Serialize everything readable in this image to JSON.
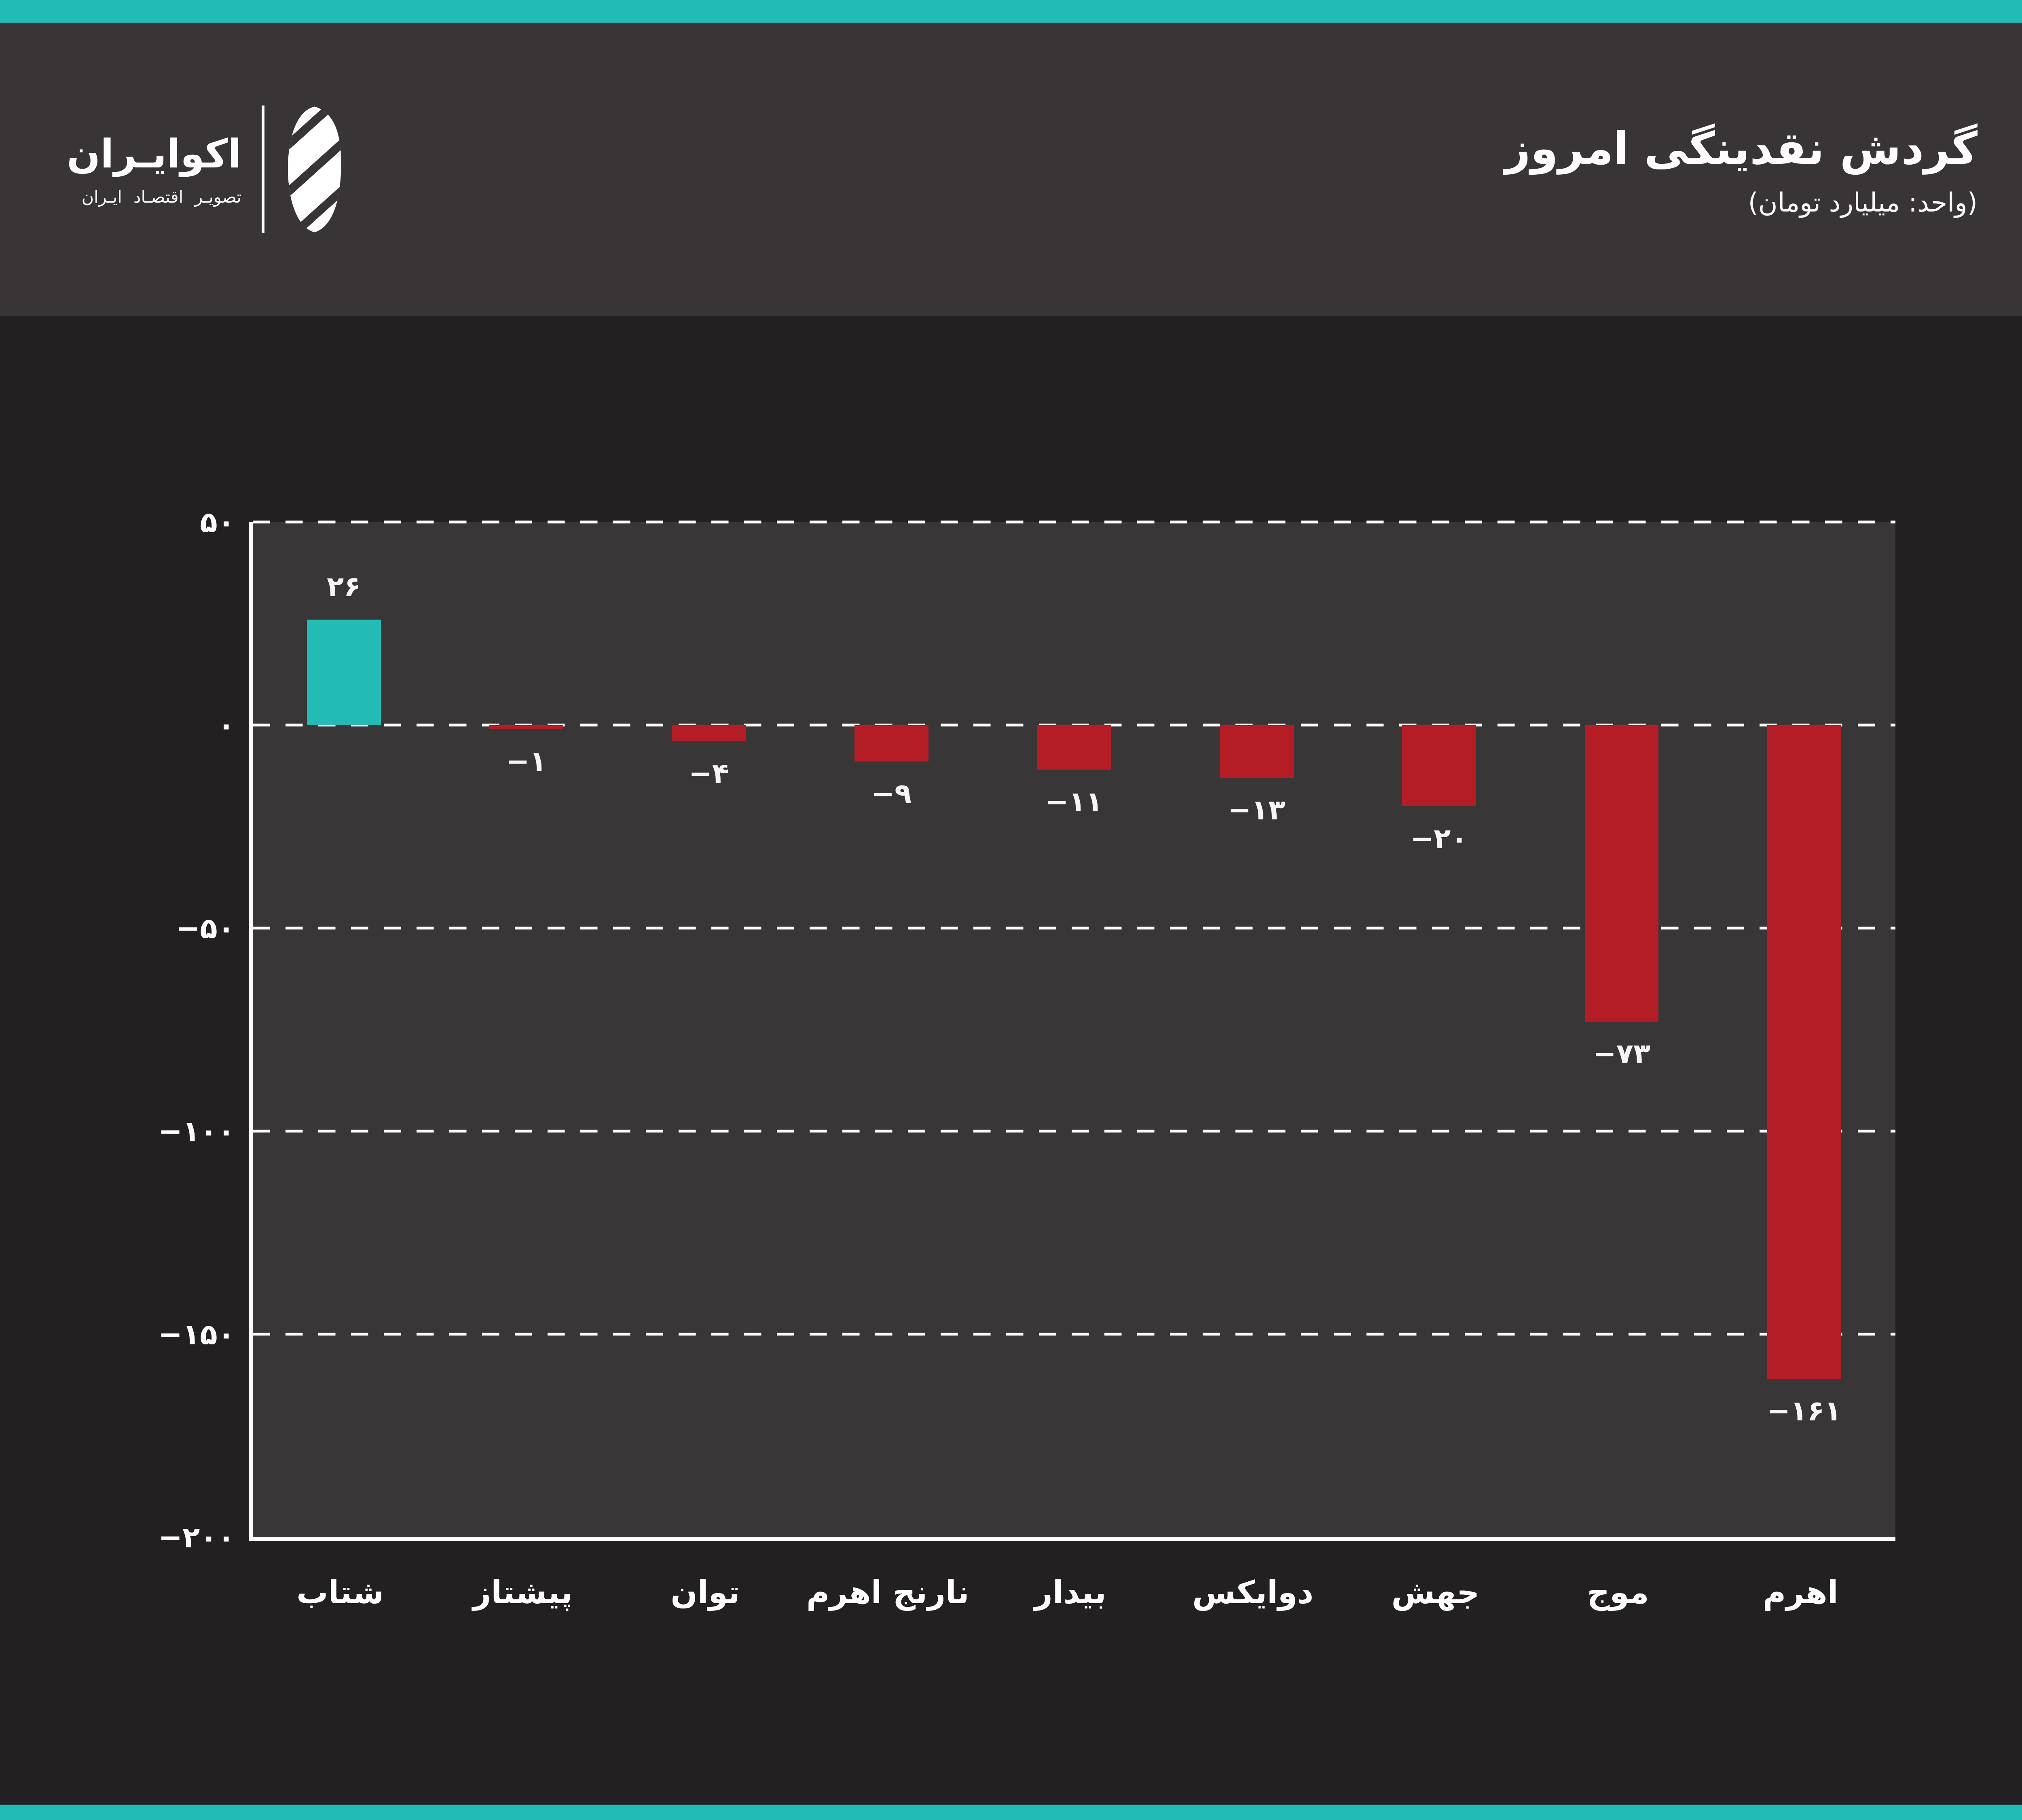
{
  "page": {
    "background": "#232021",
    "accent_teal": "#23BCB4",
    "header_background": "#393536",
    "text_color": "#FFFFFF"
  },
  "header": {
    "title": "گردش نقدینگی امروز",
    "subtitle": "(واحد: میلیارد تومان)"
  },
  "logo": {
    "wordmark": "اکوایـران",
    "tagline": "تصویـر اقتصـاد ایـران",
    "mark": "eco-iran-logo"
  },
  "chart_data": {
    "type": "bar",
    "title": "گردش نقدینگی امروز",
    "unit_label": "(واحد: میلیارد تومان)",
    "categories": [
      "شتاب",
      "پیشتاز",
      "توان",
      "نارنج اهرم",
      "بیدار",
      "دوایکس",
      "جهش",
      "موج",
      "اهرم"
    ],
    "values": [
      26,
      -1,
      -4,
      -9,
      -11,
      -13,
      -20,
      -73,
      -161
    ],
    "display_values": [
      "۲۶",
      "−۱",
      "−۴",
      "−۹",
      "−۱۱",
      "−۱۳",
      "−۲۰",
      "−۷۳",
      "−۱۶۱"
    ],
    "y_ticks": [
      50,
      0,
      -50,
      -100,
      -150,
      -200
    ],
    "y_tick_labels": [
      "۵۰",
      "۰",
      "−۵۰",
      "−۱۰۰",
      "−۱۵۰",
      "−۲۰۰"
    ],
    "ylim": [
      -200,
      50
    ],
    "grid": "dashed-horizontal",
    "legend_position": "none",
    "positive_color": "#23BCB4",
    "negative_color": "#B41D26",
    "plot_background": "#393637",
    "axis_color": "#FFFFFF"
  }
}
